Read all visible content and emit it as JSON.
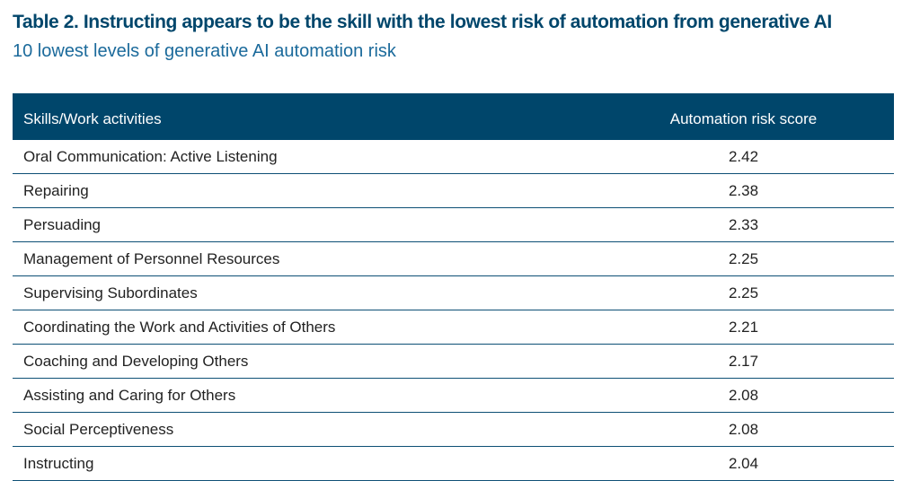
{
  "title": "Table 2. Instructing appears to be the skill with the lowest risk of automation from generative AI",
  "subtitle": "10 lowest levels of generative AI automation risk",
  "colors": {
    "title": "#00466b",
    "subtitle": "#1b6a9b",
    "header_background": "#00466b",
    "header_text": "#ffffff",
    "row_divider": "#0d4f75"
  },
  "chart_data": {
    "type": "table",
    "title": "Table 2. Instructing appears to be the skill with the lowest risk of automation from generative AI",
    "subtitle": "10 lowest levels of generative AI automation risk",
    "columns": [
      "Skills/Work activities",
      "Automation risk score"
    ],
    "rows": [
      {
        "skill": "Oral Communication: Active Listening",
        "score": "2.42"
      },
      {
        "skill": "Repairing",
        "score": "2.38"
      },
      {
        "skill": "Persuading",
        "score": "2.33"
      },
      {
        "skill": "Management of Personnel Resources",
        "score": "2.25"
      },
      {
        "skill": "Supervising Subordinates",
        "score": "2.25"
      },
      {
        "skill": "Coordinating the Work and Activities of Others",
        "score": "2.21"
      },
      {
        "skill": "Coaching and Developing Others",
        "score": "2.17"
      },
      {
        "skill": "Assisting and Caring for Others",
        "score": "2.08"
      },
      {
        "skill": "Social Perceptiveness",
        "score": "2.08"
      },
      {
        "skill": "Instructing",
        "score": "2.04"
      }
    ]
  }
}
